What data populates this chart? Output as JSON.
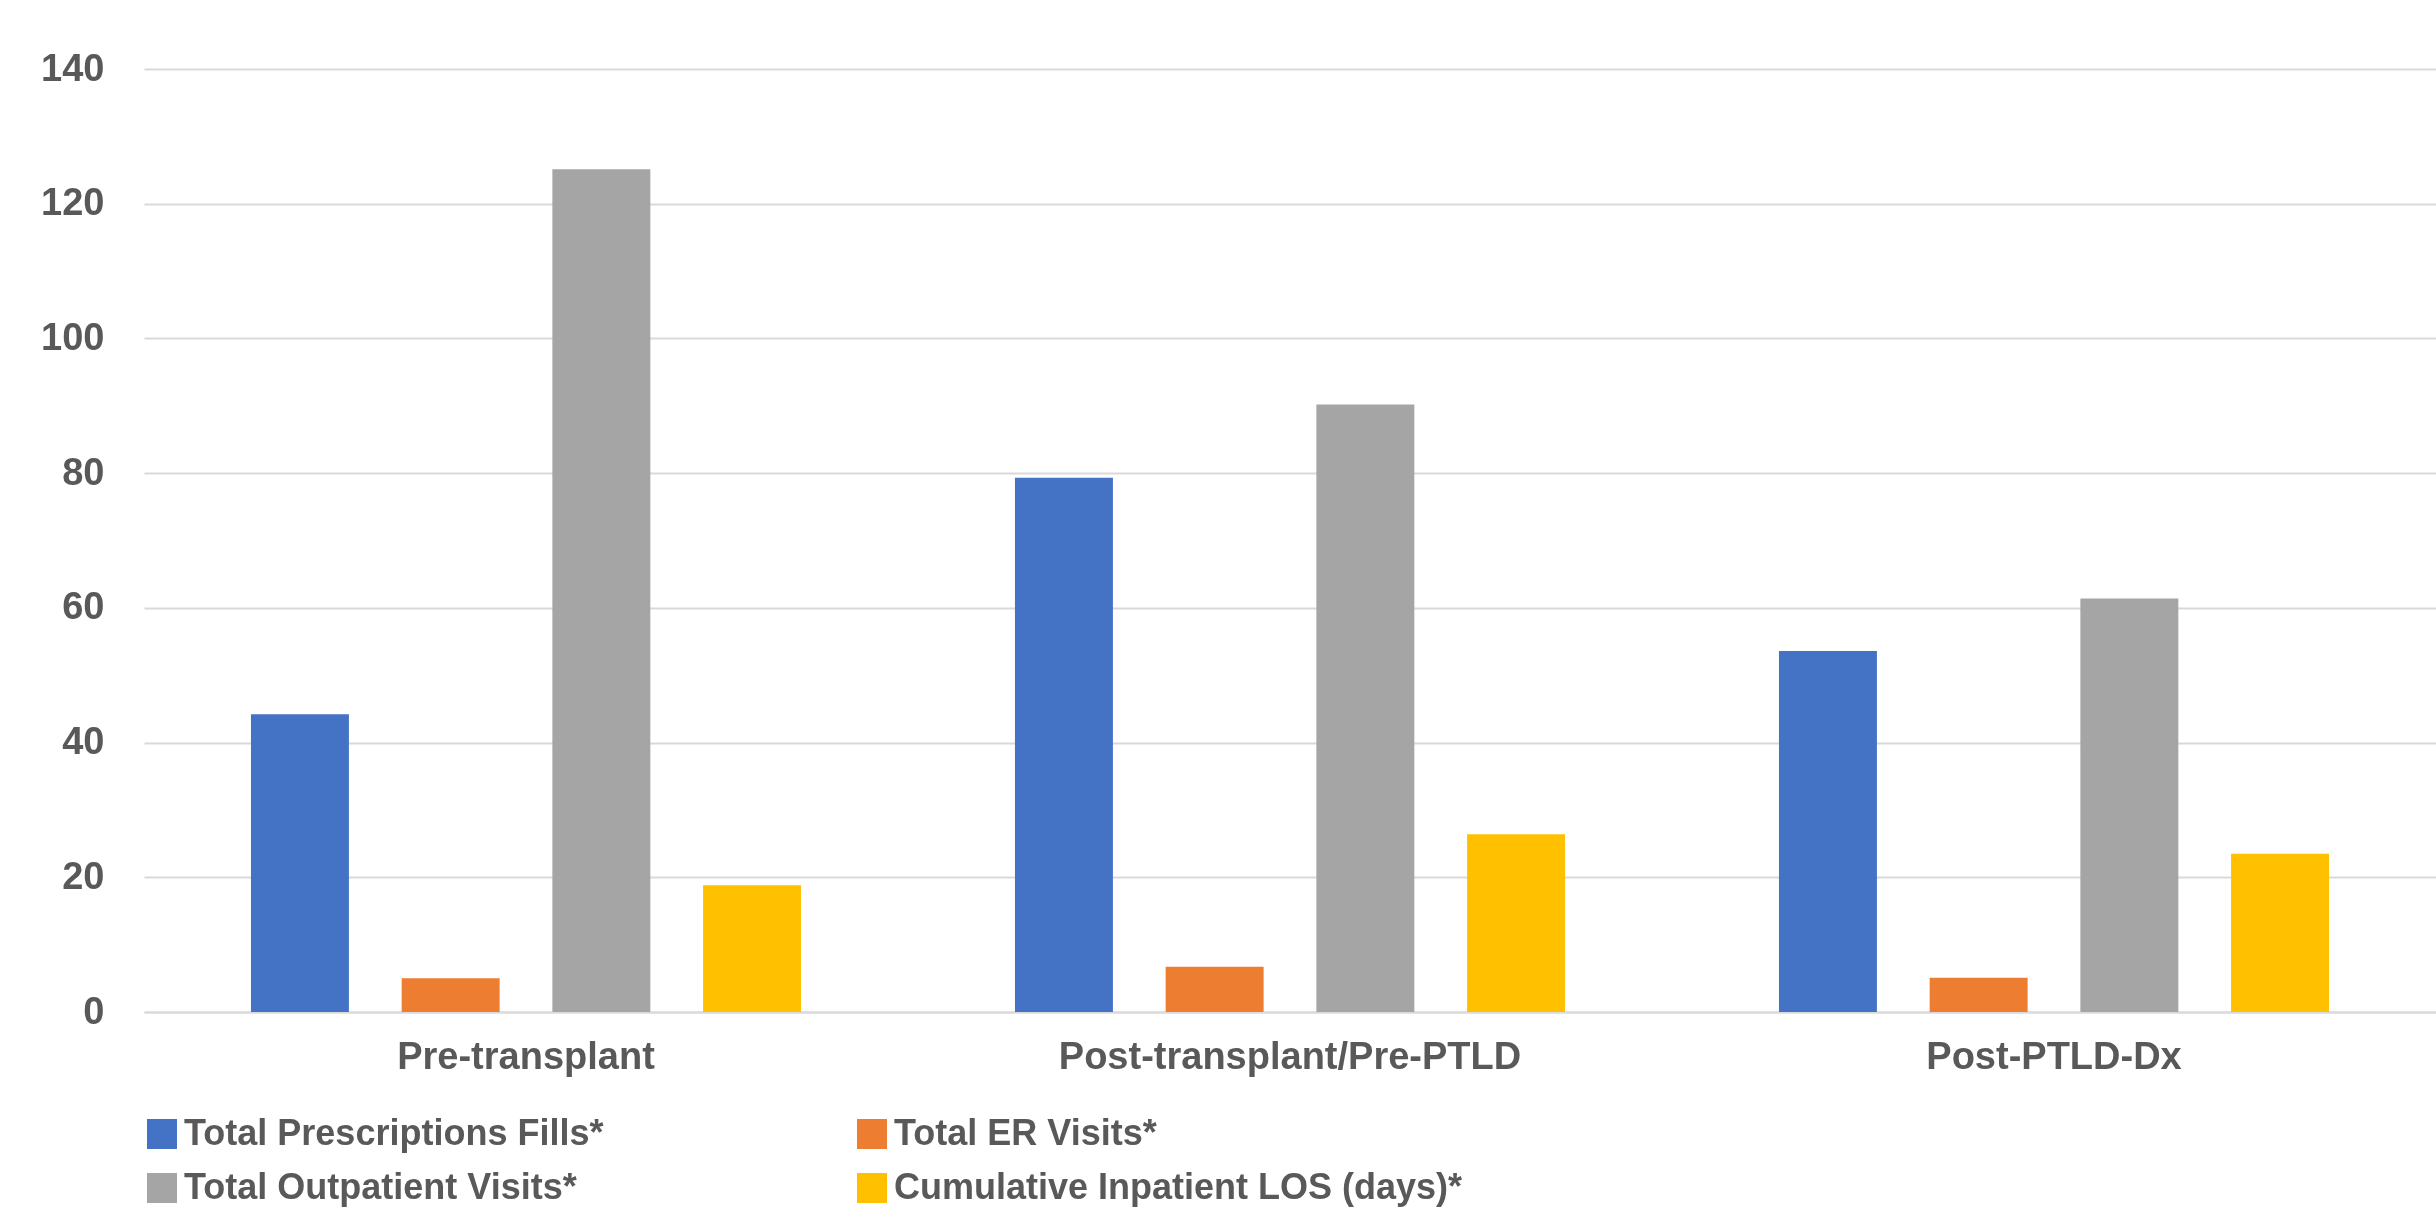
{
  "chart_data": {
    "type": "bar",
    "categories": [
      "Pre-transplant",
      "Post-transplant/Pre-PTLD",
      "Post-PTLD-Dx"
    ],
    "series": [
      {
        "name": "Total Prescriptions Fills*",
        "color": "#4472c4",
        "values": [
          44.2,
          79.3,
          53.6
        ]
      },
      {
        "name": "Total ER Visits*",
        "color": "#ed7d31",
        "values": [
          5.0,
          6.7,
          5.1
        ]
      },
      {
        "name": "Total Outpatient Visits*",
        "color": "#a5a5a5",
        "values": [
          125.1,
          90.2,
          61.4
        ]
      },
      {
        "name": "Cumulative Inpatient LOS (days)*",
        "color": "#ffc000",
        "values": [
          18.8,
          26.4,
          23.5
        ]
      }
    ],
    "ylim": [
      0,
      140
    ],
    "yticks": [
      0,
      20,
      40,
      60,
      80,
      100,
      120,
      140
    ],
    "grid": "y",
    "legend": "bottom"
  }
}
